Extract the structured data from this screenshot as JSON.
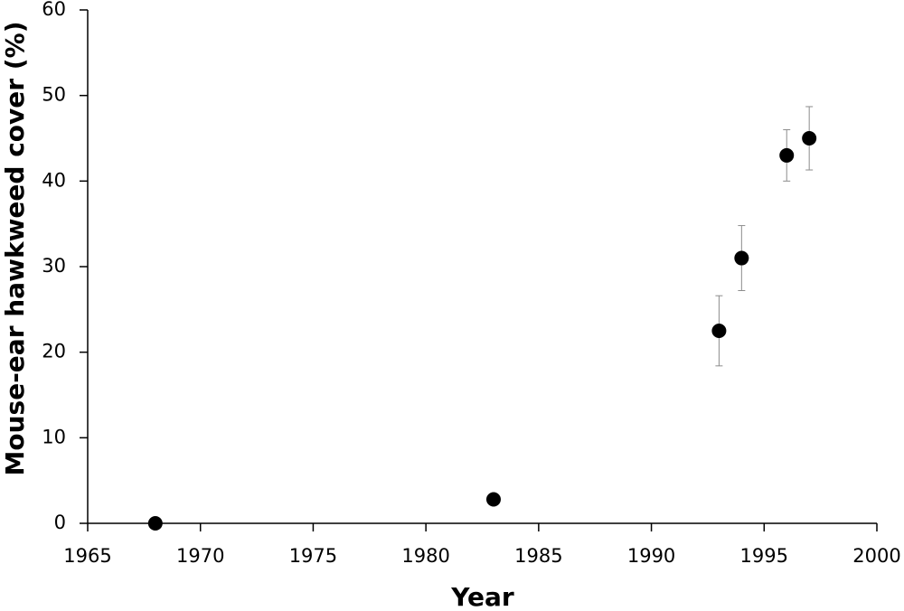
{
  "chart_data": {
    "type": "scatter",
    "xlabel": "Year",
    "ylabel": "Mouse-ear hawkweed cover (%)",
    "x": [
      1968,
      1983,
      1993,
      1994,
      1996,
      1997
    ],
    "values": [
      0,
      2.8,
      22.5,
      31,
      43,
      45
    ],
    "errors": [
      null,
      null,
      4.1,
      3.8,
      3,
      3.7
    ],
    "color": "#000000",
    "error_color": "#8c8c8c",
    "xlim": [
      1965,
      2000
    ],
    "xticks": [
      1965,
      1970,
      1975,
      1980,
      1985,
      1990,
      1995,
      2000
    ],
    "ylim": [
      0,
      60
    ],
    "yticks": [
      0,
      10,
      20,
      30,
      40,
      50,
      60
    ],
    "grid": false
  }
}
